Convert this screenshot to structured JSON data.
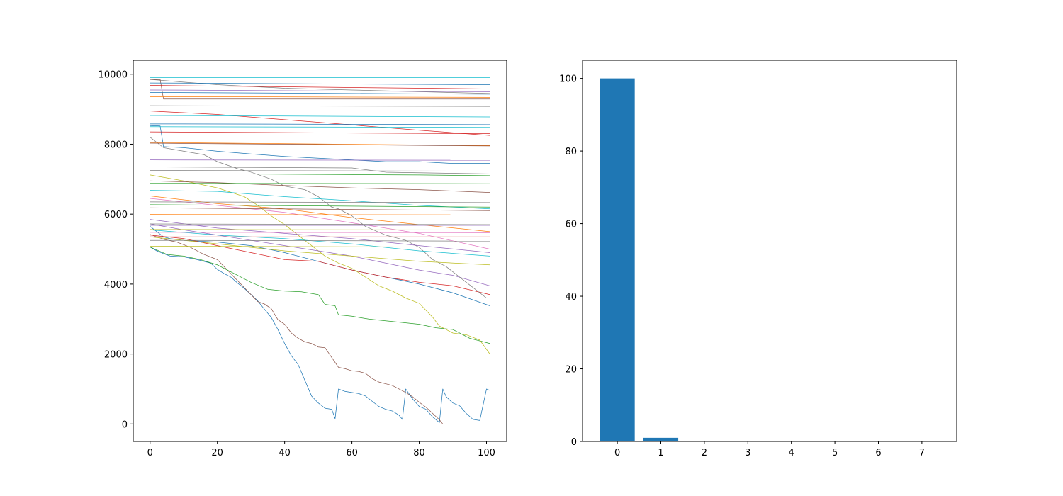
{
  "chart_data": [
    {
      "type": "line",
      "title": "",
      "xlabel": "",
      "ylabel": "",
      "xlim": [
        -5,
        106
      ],
      "ylim": [
        -500,
        10400
      ],
      "xticks": [
        0,
        20,
        40,
        60,
        80,
        100
      ],
      "yticks": [
        0,
        2000,
        4000,
        6000,
        8000,
        10000
      ],
      "grid": false,
      "legend": "none",
      "series": [
        {
          "color": "#1f77b4",
          "x": [
            0,
            2,
            4,
            6,
            10,
            14,
            18,
            20,
            22,
            24,
            26,
            28,
            30,
            32,
            34,
            36,
            38,
            40,
            42,
            44,
            46,
            48,
            50,
            52,
            54,
            55,
            56,
            58,
            60,
            62,
            64,
            66,
            68,
            70,
            72,
            74,
            75,
            76,
            78,
            80,
            82,
            84,
            86,
            87,
            88,
            90,
            92,
            94,
            96,
            98,
            100,
            101
          ],
          "y": [
            5060,
            4950,
            4870,
            4800,
            4780,
            4700,
            4600,
            4420,
            4300,
            4200,
            4030,
            3880,
            3700,
            3520,
            3280,
            3050,
            2700,
            2300,
            1950,
            1700,
            1250,
            800,
            600,
            450,
            420,
            150,
            1000,
            930,
            900,
            870,
            800,
            650,
            500,
            420,
            370,
            250,
            130,
            1000,
            720,
            500,
            420,
            200,
            40,
            1000,
            780,
            600,
            520,
            300,
            130,
            100,
            1000,
            960
          ]
        },
        {
          "color": "#8c564b",
          "x": [
            0,
            4,
            8,
            12,
            16,
            20,
            24,
            26,
            28,
            30,
            32,
            34,
            36,
            38,
            40,
            42,
            44,
            46,
            48,
            50,
            52,
            54,
            56,
            58,
            60,
            62,
            64,
            66,
            68,
            70,
            72,
            74,
            76,
            78,
            80,
            82,
            84,
            86,
            87,
            88,
            90,
            95,
            101
          ],
          "y": [
            5420,
            5280,
            5200,
            5050,
            4850,
            4700,
            4300,
            4100,
            3900,
            3700,
            3500,
            3430,
            3300,
            2980,
            2850,
            2600,
            2450,
            2350,
            2300,
            2200,
            2180,
            1900,
            1620,
            1580,
            1520,
            1500,
            1450,
            1300,
            1200,
            1150,
            1100,
            1000,
            900,
            780,
            620,
            480,
            300,
            120,
            0,
            0,
            0,
            0,
            0
          ]
        },
        {
          "color": "#2ca02c",
          "x": [
            0,
            5,
            10,
            15,
            20,
            25,
            30,
            35,
            40,
            45,
            50,
            52,
            55,
            56,
            58,
            60,
            65,
            70,
            75,
            80,
            85,
            88,
            90,
            95,
            101
          ],
          "y": [
            5060,
            4850,
            4800,
            4700,
            4550,
            4300,
            4050,
            3850,
            3800,
            3780,
            3700,
            3420,
            3380,
            3120,
            3100,
            3080,
            3000,
            2950,
            2900,
            2850,
            2750,
            2720,
            2700,
            2450,
            2300
          ]
        },
        {
          "color": "#bcbd22",
          "x": [
            0,
            10,
            20,
            28,
            32,
            36,
            40,
            44,
            48,
            52,
            56,
            60,
            64,
            68,
            72,
            76,
            80,
            84,
            86,
            88,
            90,
            94,
            98,
            101
          ],
          "y": [
            7120,
            6950,
            6750,
            6500,
            6250,
            5950,
            5700,
            5400,
            5100,
            4800,
            4600,
            4450,
            4200,
            3950,
            3800,
            3600,
            3450,
            3050,
            2800,
            2700,
            2600,
            2550,
            2400,
            2000
          ]
        },
        {
          "color": "#1f77b4",
          "x": [
            0,
            2,
            4,
            6,
            10,
            20,
            30,
            40,
            50,
            60,
            70,
            80,
            90,
            101
          ],
          "y": [
            5650,
            5500,
            5350,
            5300,
            5250,
            5200,
            5100,
            4900,
            4650,
            4400,
            4200,
            4000,
            3750,
            3380
          ]
        },
        {
          "color": "#9467bd",
          "x": [
            0,
            10,
            20,
            30,
            40,
            50,
            60,
            70,
            80,
            90,
            101
          ],
          "y": [
            5720,
            5550,
            5400,
            5250,
            5100,
            4950,
            4800,
            4600,
            4400,
            4250,
            3950
          ]
        },
        {
          "color": "#d62728",
          "x": [
            0,
            10,
            20,
            30,
            40,
            50,
            60,
            70,
            80,
            90,
            101
          ],
          "y": [
            5400,
            5300,
            5100,
            4900,
            4700,
            4650,
            4400,
            4200,
            4050,
            3950,
            3700
          ]
        },
        {
          "color": "#7f7f7f",
          "x": [
            0,
            4,
            10,
            16,
            20,
            26,
            30,
            36,
            40,
            46,
            50,
            54,
            56,
            60,
            64,
            70,
            76,
            80,
            84,
            88,
            92,
            96,
            100,
            101
          ],
          "y": [
            8200,
            7900,
            7800,
            7700,
            7500,
            7300,
            7200,
            7000,
            6800,
            6700,
            6500,
            6200,
            6150,
            5950,
            5650,
            5400,
            5250,
            5050,
            4700,
            4500,
            4200,
            3900,
            3600,
            3600
          ]
        },
        {
          "color": "#1f77b4",
          "x": [
            0,
            3,
            4,
            10,
            20,
            30,
            40,
            50,
            60,
            70,
            80,
            90,
            101
          ],
          "y": [
            8530,
            8520,
            7930,
            7900,
            7800,
            7720,
            7650,
            7600,
            7550,
            7500,
            7500,
            7450,
            7450
          ]
        },
        {
          "color": "#17becf",
          "x": [
            0,
            20,
            40,
            60,
            80,
            101
          ],
          "y": [
            6680,
            6650,
            6500,
            6380,
            6250,
            6150
          ]
        },
        {
          "color": "#ff7f0e",
          "x": [
            0,
            20,
            40,
            60,
            80,
            101
          ],
          "y": [
            6520,
            6300,
            6150,
            5900,
            5700,
            5500
          ]
        },
        {
          "color": "#e377c2",
          "x": [
            0,
            20,
            40,
            60,
            80,
            101
          ],
          "y": [
            6450,
            6250,
            6050,
            5750,
            5450,
            5000
          ]
        },
        {
          "color": "#9467bd",
          "x": [
            0,
            20,
            40,
            60,
            80,
            101
          ],
          "y": [
            5850,
            5600,
            5450,
            5300,
            5100,
            4900
          ]
        },
        {
          "color": "#17becf",
          "x": [
            0,
            20,
            40,
            60,
            80,
            101
          ],
          "y": [
            5550,
            5400,
            5300,
            5150,
            4950,
            4800
          ]
        },
        {
          "color": "#bcbd22",
          "x": [
            0,
            20,
            40,
            60,
            80,
            101
          ],
          "y": [
            5350,
            5150,
            4950,
            4800,
            4650,
            4550
          ]
        },
        {
          "color": "#d62728",
          "x": [
            0,
            20,
            40,
            60,
            80,
            101
          ],
          "y": [
            8950,
            8850,
            8700,
            8550,
            8400,
            8250
          ]
        },
        {
          "color": "#7f7f7f",
          "x": [
            0,
            20,
            40,
            60,
            80,
            101
          ],
          "y": [
            9850,
            9700,
            9600,
            9550,
            9500,
            9450
          ]
        },
        {
          "color": "#8c564b",
          "x": [
            0,
            20,
            40,
            60,
            80,
            101
          ],
          "y": [
            6950,
            6900,
            6820,
            6750,
            6700,
            6620
          ]
        },
        {
          "color": "#2ca02c",
          "x": [
            0,
            20,
            40,
            60,
            80,
            101
          ],
          "y": [
            7150,
            7150,
            7140,
            7130,
            7120,
            7100
          ]
        },
        {
          "color": "#8c564b",
          "x": [
            0,
            3,
            4,
            101
          ],
          "y": [
            9850,
            9850,
            9290,
            9290
          ]
        },
        {
          "color": "#7f7f7f",
          "x": [
            0,
            60,
            70,
            101
          ],
          "y": [
            7350,
            7320,
            7200,
            7150
          ]
        },
        {
          "color": "#17becf",
          "x": [
            0,
            101
          ],
          "y": [
            9900,
            9900
          ]
        },
        {
          "color": "#1f77b4",
          "x": [
            0,
            101
          ],
          "y": [
            9750,
            9700
          ]
        },
        {
          "color": "#d62728",
          "x": [
            0,
            101
          ],
          "y": [
            9680,
            9580
          ]
        },
        {
          "color": "#9467bd",
          "x": [
            0,
            101
          ],
          "y": [
            9550,
            9500
          ]
        },
        {
          "color": "#1f77b4",
          "x": [
            0,
            101
          ],
          "y": [
            9480,
            9430
          ]
        },
        {
          "color": "#ff7f0e",
          "x": [
            0,
            101
          ],
          "y": [
            9360,
            9340
          ]
        },
        {
          "color": "#7f7f7f",
          "x": [
            0,
            101
          ],
          "y": [
            9100,
            9080
          ]
        },
        {
          "color": "#17becf",
          "x": [
            0,
            101
          ],
          "y": [
            8820,
            8780
          ]
        },
        {
          "color": "#1f77b4",
          "x": [
            0,
            101
          ],
          "y": [
            8580,
            8560
          ]
        },
        {
          "color": "#17becf",
          "x": [
            0,
            101
          ],
          "y": [
            8500,
            8480
          ]
        },
        {
          "color": "#d62728",
          "x": [
            0,
            101
          ],
          "y": [
            8350,
            8300
          ]
        },
        {
          "color": "#ff7f0e",
          "x": [
            0,
            101
          ],
          "y": [
            8050,
            7960
          ]
        },
        {
          "color": "#8c564b",
          "x": [
            0,
            101
          ],
          "y": [
            8030,
            7950
          ]
        },
        {
          "color": "#9467bd",
          "x": [
            0,
            101
          ],
          "y": [
            7550,
            7540
          ]
        },
        {
          "color": "#7f7f7f",
          "x": [
            0,
            101
          ],
          "y": [
            7250,
            7230
          ]
        },
        {
          "color": "#2ca02c",
          "x": [
            0,
            101
          ],
          "y": [
            6880,
            6870
          ]
        },
        {
          "color": "#7f7f7f",
          "x": [
            0,
            101
          ],
          "y": [
            6350,
            6330
          ]
        },
        {
          "color": "#2ca02c",
          "x": [
            0,
            101
          ],
          "y": [
            6270,
            6200
          ]
        },
        {
          "color": "#8c564b",
          "x": [
            0,
            101
          ],
          "y": [
            6180,
            6100
          ]
        },
        {
          "color": "#ff7f0e",
          "x": [
            0,
            101
          ],
          "y": [
            5990,
            5980
          ]
        },
        {
          "color": "#7f7f7f",
          "x": [
            0,
            101
          ],
          "y": [
            5720,
            5700
          ]
        },
        {
          "color": "#9467bd",
          "x": [
            0,
            101
          ],
          "y": [
            5680,
            5680
          ]
        },
        {
          "color": "#e377c2",
          "x": [
            0,
            101
          ],
          "y": [
            5480,
            5470
          ]
        },
        {
          "color": "#bcbd22",
          "x": [
            0,
            101
          ],
          "y": [
            5560,
            5550
          ]
        },
        {
          "color": "#d62728",
          "x": [
            0,
            101
          ],
          "y": [
            5350,
            5350
          ]
        },
        {
          "color": "#7f7f7f",
          "x": [
            0,
            101
          ],
          "y": [
            5250,
            5230
          ]
        },
        {
          "color": "#bcbd22",
          "x": [
            0,
            101
          ],
          "y": [
            5080,
            5060
          ]
        }
      ]
    },
    {
      "type": "bar",
      "title": "",
      "xlabel": "",
      "ylabel": "",
      "categories": [
        "0",
        "1",
        "2",
        "3",
        "4",
        "5",
        "6",
        "7"
      ],
      "values": [
        100,
        1,
        0,
        0,
        0,
        0,
        0,
        0
      ],
      "xlim": [
        -0.8,
        7.8
      ],
      "ylim": [
        0,
        105
      ],
      "yticks": [
        0,
        20,
        40,
        60,
        80,
        100
      ],
      "color": "#1f77b4",
      "grid": false,
      "legend": "none"
    }
  ]
}
